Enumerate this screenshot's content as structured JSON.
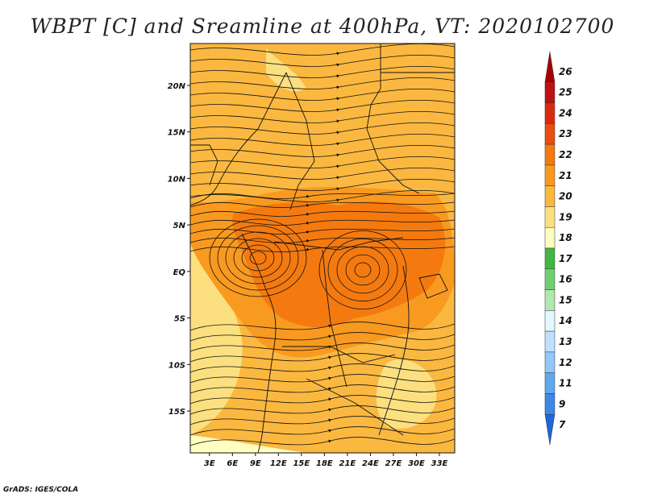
{
  "title": "WBPT [C] and Sreamline at 400hPa, VT: 2020102700",
  "credit": "GrADS: IGES/COLA",
  "variable": "WBPT",
  "units": "C",
  "level": "400hPa",
  "valid_time": "2020102700",
  "lat_labels": [
    "20N",
    "15N",
    "10N",
    "5N",
    "EQ",
    "5S",
    "10S",
    "15S"
  ],
  "lat_values": [
    20,
    15,
    10,
    5,
    0,
    -5,
    -10,
    -15
  ],
  "lon_labels": [
    "3E",
    "6E",
    "9E",
    "12E",
    "15E",
    "18E",
    "21E",
    "24E",
    "27E",
    "30E",
    "33E"
  ],
  "lon_values": [
    3,
    6,
    9,
    12,
    15,
    18,
    21,
    24,
    27,
    30,
    33
  ],
  "extent": {
    "lon_min": 0.5,
    "lon_max": 35,
    "lat_min": -19.5,
    "lat_max": 24.5
  },
  "colorbar": {
    "labels": [
      "26",
      "25",
      "24",
      "23",
      "22",
      "21",
      "20",
      "19",
      "18",
      "17",
      "16",
      "15",
      "14",
      "13",
      "12",
      "11",
      "9",
      "7"
    ],
    "colors": [
      "#a50000",
      "#c01010",
      "#d92a10",
      "#e84e10",
      "#f47a10",
      "#f99a20",
      "#fbb840",
      "#fce080",
      "#fffdc0",
      "#40b840",
      "#70d070",
      "#b0e8b0",
      "#e0f8ff",
      "#c0e0ff",
      "#90c8f8",
      "#60a8f0",
      "#3c88e8",
      "#1f66d8"
    ]
  },
  "field_colors": {
    "c20_21": "#fbb840",
    "c21_22": "#f99a20",
    "c22_23": "#f47a10",
    "c19_20": "#fce080",
    "c18_19": "#fffdc0"
  }
}
